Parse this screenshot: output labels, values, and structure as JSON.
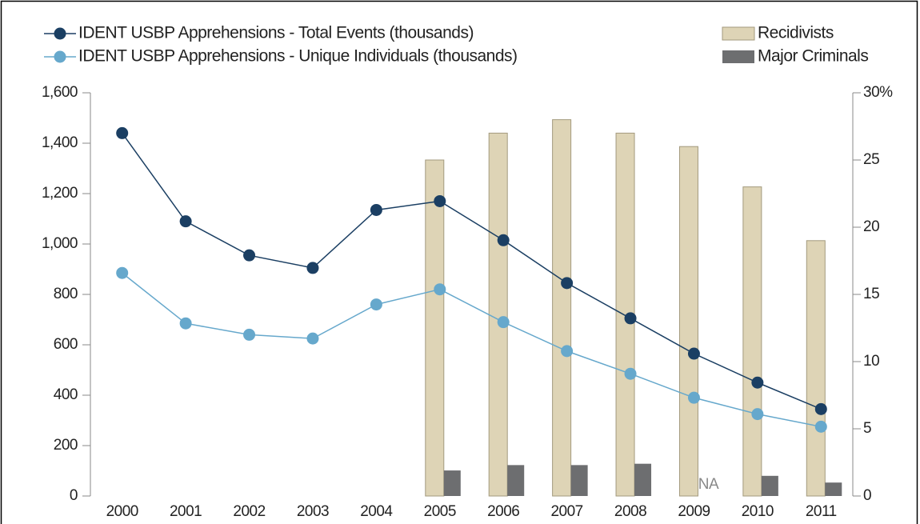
{
  "chart_data": {
    "type": "bar_line",
    "categories": [
      "2000",
      "2001",
      "2002",
      "2003",
      "2004",
      "2005",
      "2006",
      "2007",
      "2008",
      "2009",
      "2010",
      "2011"
    ],
    "series": [
      {
        "name": "IDENT USBP Apprehensions - Total Events (thousands)",
        "type": "line",
        "color": "#1b3f63",
        "values": [
          1440,
          1090,
          955,
          905,
          1135,
          1170,
          1015,
          845,
          705,
          565,
          450,
          345
        ]
      },
      {
        "name": "IDENT USBP Apprehensions - Unique Individuals (thousands)",
        "type": "line",
        "color": "#66a8cc",
        "values": [
          885,
          685,
          640,
          625,
          760,
          820,
          690,
          575,
          485,
          390,
          325,
          275
        ]
      },
      {
        "name": "Recidivists",
        "type": "bar",
        "axis": "y2",
        "color": "#ded4b6",
        "values": [
          null,
          null,
          null,
          null,
          null,
          25,
          27,
          28,
          27,
          26,
          23,
          19
        ]
      },
      {
        "name": "Major Criminals",
        "type": "bar",
        "axis": "y2",
        "color": "#6d6e70",
        "values": [
          null,
          null,
          null,
          null,
          null,
          1.9,
          2.3,
          2.3,
          2.4,
          null,
          1.5,
          1.0
        ]
      }
    ],
    "annotations": [
      {
        "text": "NA",
        "x": "2009"
      }
    ],
    "ylim": [
      0,
      1600
    ],
    "yticks": [
      0,
      200,
      400,
      600,
      800,
      {
        "value": 1000,
        "label": "1,000"
      },
      {
        "value": 1200,
        "label": "1,200"
      },
      {
        "value": 1400,
        "label": "1,400"
      },
      {
        "value": 1600,
        "label": "1,600"
      }
    ],
    "y2lim": [
      0,
      30
    ],
    "y2ticks": [
      0,
      5,
      10,
      15,
      20,
      25,
      {
        "value": 30,
        "label": "30%"
      }
    ]
  }
}
